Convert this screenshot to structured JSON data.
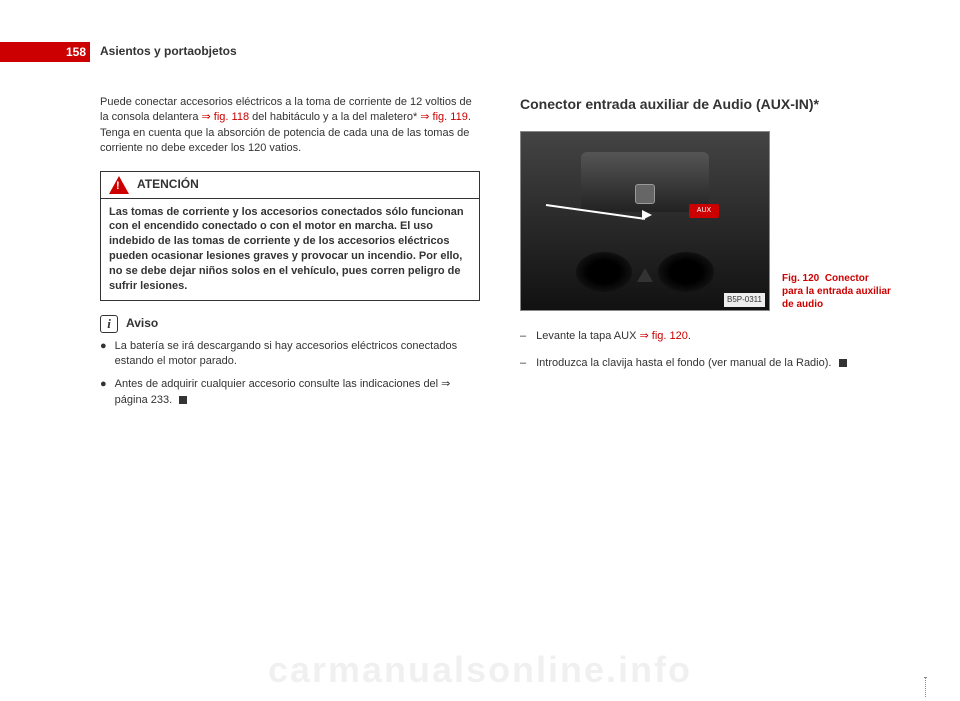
{
  "page_number": "158",
  "header_title": "Asientos y portaobjetos",
  "left": {
    "intro_a": "Puede conectar accesorios eléctricos a la toma de corriente de 12 voltios de la consola delantera ",
    "ref1": "⇒ fig. 118",
    "intro_b": " del habitáculo y a la del maletero* ",
    "ref2": "⇒ fig. 119",
    "intro_c": ". Tenga en cuenta que la absorción de potencia de cada una de las tomas de corriente no debe exceder los 120 vatios.",
    "warning": {
      "title": "ATENCIÓN",
      "body": "Las tomas de corriente y los accesorios conectados sólo funcionan con el encendido conectado o con el motor en marcha. El uso indebido de las tomas de corriente y de los accesorios eléctricos pueden ocasionar lesiones graves y provocar un incendio. Por ello, no se debe dejar niños solos en el vehículo, pues corren peligro de sufrir lesiones."
    },
    "aviso": {
      "title": "Aviso",
      "b1": "La batería se irá descargando si hay accesorios eléctricos conectados estando el motor parado.",
      "b2": "Antes de adquirir cualquier accesorio consulte las indicaciones del ⇒ página 233."
    }
  },
  "right": {
    "section_title": "Conector entrada auxiliar de Audio (AUX-IN)*",
    "fig": {
      "num": "Fig. 120",
      "caption": "Conector para la entrada auxiliar de audio",
      "aux_text": "AUX",
      "tag": "B5P-0311"
    },
    "step1_a": "Levante la tapa AUX ",
    "step1_ref": "⇒ fig. 120",
    "step1_b": ".",
    "step2": "Introduzca la clavija hasta el fondo (ver manual de la Radio)."
  },
  "watermark": "carmanualsonline.info"
}
